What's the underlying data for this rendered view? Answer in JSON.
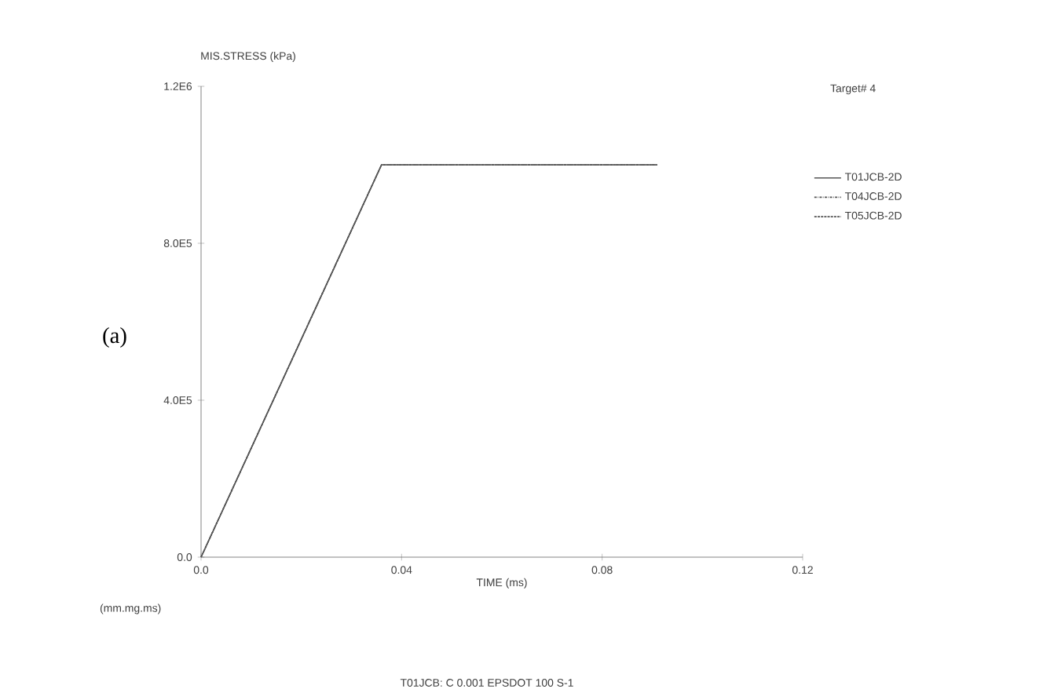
{
  "chart_data": {
    "type": "line",
    "ylabel": "MIS.STRESS (kPa)",
    "xlabel": "TIME (ms)",
    "x": [
      0,
      0.036,
      0.091
    ],
    "series": [
      {
        "name": "T01JCB-2D",
        "color": "#555555",
        "line_style": "solid",
        "values": [
          0,
          1000000,
          1000000
        ]
      },
      {
        "name": "T04JCB-2D",
        "color": "#555555",
        "line_style": "dotted",
        "values": [
          0,
          1000000,
          1000000
        ]
      },
      {
        "name": "T05JCB-2D",
        "color": "#555555",
        "line_style": "dashed",
        "values": [
          0,
          1000000,
          1000000
        ]
      }
    ],
    "xlim": [
      0,
      0.12
    ],
    "ylim": [
      0,
      1200000
    ],
    "xticks": [
      {
        "value": 0,
        "label": "0.0"
      },
      0.04,
      0.08,
      0.12
    ],
    "yticks": [
      {
        "value": 0,
        "label": "0.0"
      },
      {
        "value": 400000,
        "label": "4.0E5"
      },
      {
        "value": 800000,
        "label": "8.0E5"
      },
      {
        "value": 1200000,
        "label": "1.2E6"
      }
    ],
    "legend": "right",
    "marker": "none",
    "grid": false,
    "annotations": [
      "Target# 4",
      "(a)",
      "(mm.mg.ms)",
      "T01JCB: C 0.001   EPSDOT 100 S-1"
    ]
  }
}
